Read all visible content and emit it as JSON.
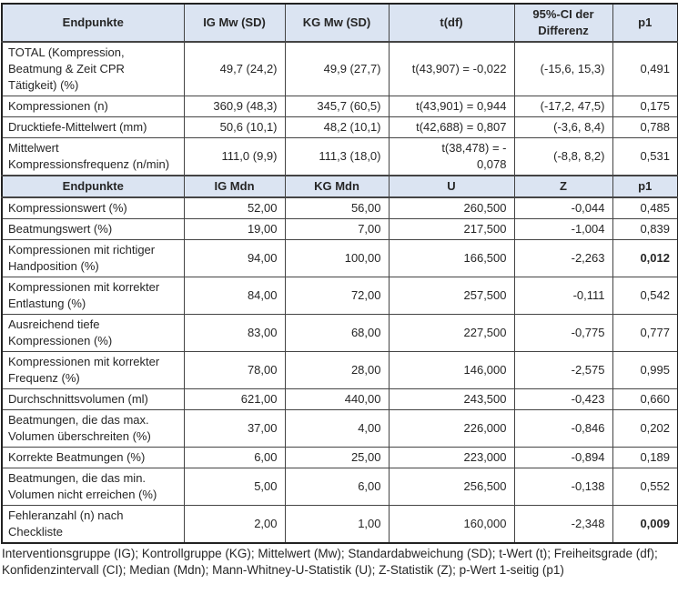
{
  "colors": {
    "header_bg": "#dbe4f2",
    "border": "#444444",
    "text": "#262626",
    "page_bg": "#ffffff"
  },
  "section1": {
    "header": {
      "endpoint": "Endpunkte",
      "ig": "IG Mw (SD)",
      "kg": "KG Mw (SD)",
      "stat": "t(df)",
      "extra": "95%-CI der Differenz",
      "p": "p1"
    },
    "rows": [
      {
        "endpoint": "TOTAL (Kompression, Beatmung & Zeit CPR Tätigkeit) (%)",
        "ig": "49,7 (24,2)",
        "kg": "49,9 (27,7)",
        "stat": "t(43,907) = -0,022",
        "extra": "(-15,6, 15,3)",
        "p": "0,491"
      },
      {
        "endpoint": "Kompressionen (n)",
        "ig": "360,9 (48,3)",
        "kg": "345,7 (60,5)",
        "stat": "t(43,901) = 0,944",
        "extra": "(-17,2, 47,5)",
        "p": "0,175"
      },
      {
        "endpoint": "Drucktiefe-Mittelwert (mm)",
        "ig": "50,6 (10,1)",
        "kg": "48,2 (10,1)",
        "stat": "t(42,688) = 0,807",
        "extra": "(-3,6, 8,4)",
        "p": "0,788"
      },
      {
        "endpoint": "Mittelwert Kompressionsfrequenz (n/min)",
        "ig": "111,0 (9,9)",
        "kg": "111,3 (18,0)",
        "stat": "t(38,478) = -\n0,078",
        "extra": "(-8,8, 8,2)",
        "p": "0,531"
      }
    ]
  },
  "section2": {
    "header": {
      "endpoint": "Endpunkte",
      "ig": "IG Mdn",
      "kg": "KG Mdn",
      "stat": "U",
      "extra": "Z",
      "p": "p1"
    },
    "rows": [
      {
        "endpoint": "Kompressionswert (%)",
        "ig": "52,00",
        "kg": "56,00",
        "stat": "260,500",
        "extra": "-0,044",
        "p": "0,485"
      },
      {
        "endpoint": "Beatmungswert (%)",
        "ig": "19,00",
        "kg": "7,00",
        "stat": "217,500",
        "extra": "-1,004",
        "p": "0,839"
      },
      {
        "endpoint": "Kompressionen mit richtiger Handposition (%)",
        "ig": "94,00",
        "kg": "100,00",
        "stat": "166,500",
        "extra": "-2,263",
        "p": "0,012"
      },
      {
        "endpoint": "Kompressionen mit korrekter Entlastung (%)",
        "ig": "84,00",
        "kg": "72,00",
        "stat": "257,500",
        "extra": "-0,111",
        "p": "0,542"
      },
      {
        "endpoint": "Ausreichend tiefe Kompressionen (%)",
        "ig": "83,00",
        "kg": "68,00",
        "stat": "227,500",
        "extra": "-0,775",
        "p": "0,777"
      },
      {
        "endpoint": "Kompressionen mit korrekter Frequenz (%)",
        "ig": "78,00",
        "kg": "28,00",
        "stat": "146,000",
        "extra": "-2,575",
        "p": "0,995"
      },
      {
        "endpoint": "Durchschnittsvolumen (ml)",
        "ig": "621,00",
        "kg": "440,00",
        "stat": "243,500",
        "extra": "-0,423",
        "p": "0,660"
      },
      {
        "endpoint": "Beatmungen, die das max. Volumen überschreiten (%)",
        "ig": "37,00",
        "kg": "4,00",
        "stat": "226,000",
        "extra": "-0,846",
        "p": "0,202"
      },
      {
        "endpoint": "Korrekte Beatmungen (%)",
        "ig": "6,00",
        "kg": "25,00",
        "stat": "223,000",
        "extra": "-0,894",
        "p": "0,189"
      },
      {
        "endpoint": "Beatmungen, die das min. Volumen nicht erreichen (%)",
        "ig": "5,00",
        "kg": "6,00",
        "stat": "256,500",
        "extra": "-0,138",
        "p": "0,552"
      },
      {
        "endpoint": "Fehleranzahl (n) nach Checkliste",
        "ig": "2,00",
        "kg": "1,00",
        "stat": "160,000",
        "extra": "-2,348",
        "p": "0,009"
      }
    ]
  },
  "footnote": "Interventionsgruppe (IG); Kontrollgruppe (KG); Mittelwert (Mw); Standardabweichung (SD); t-Wert (t); Freiheitsgrade (df); Konfidenzintervall (CI); Median (Mdn); Mann-Whitney-U-Statistik (U); Z-Statistik (Z); p-Wert 1-seitig (p1)"
}
